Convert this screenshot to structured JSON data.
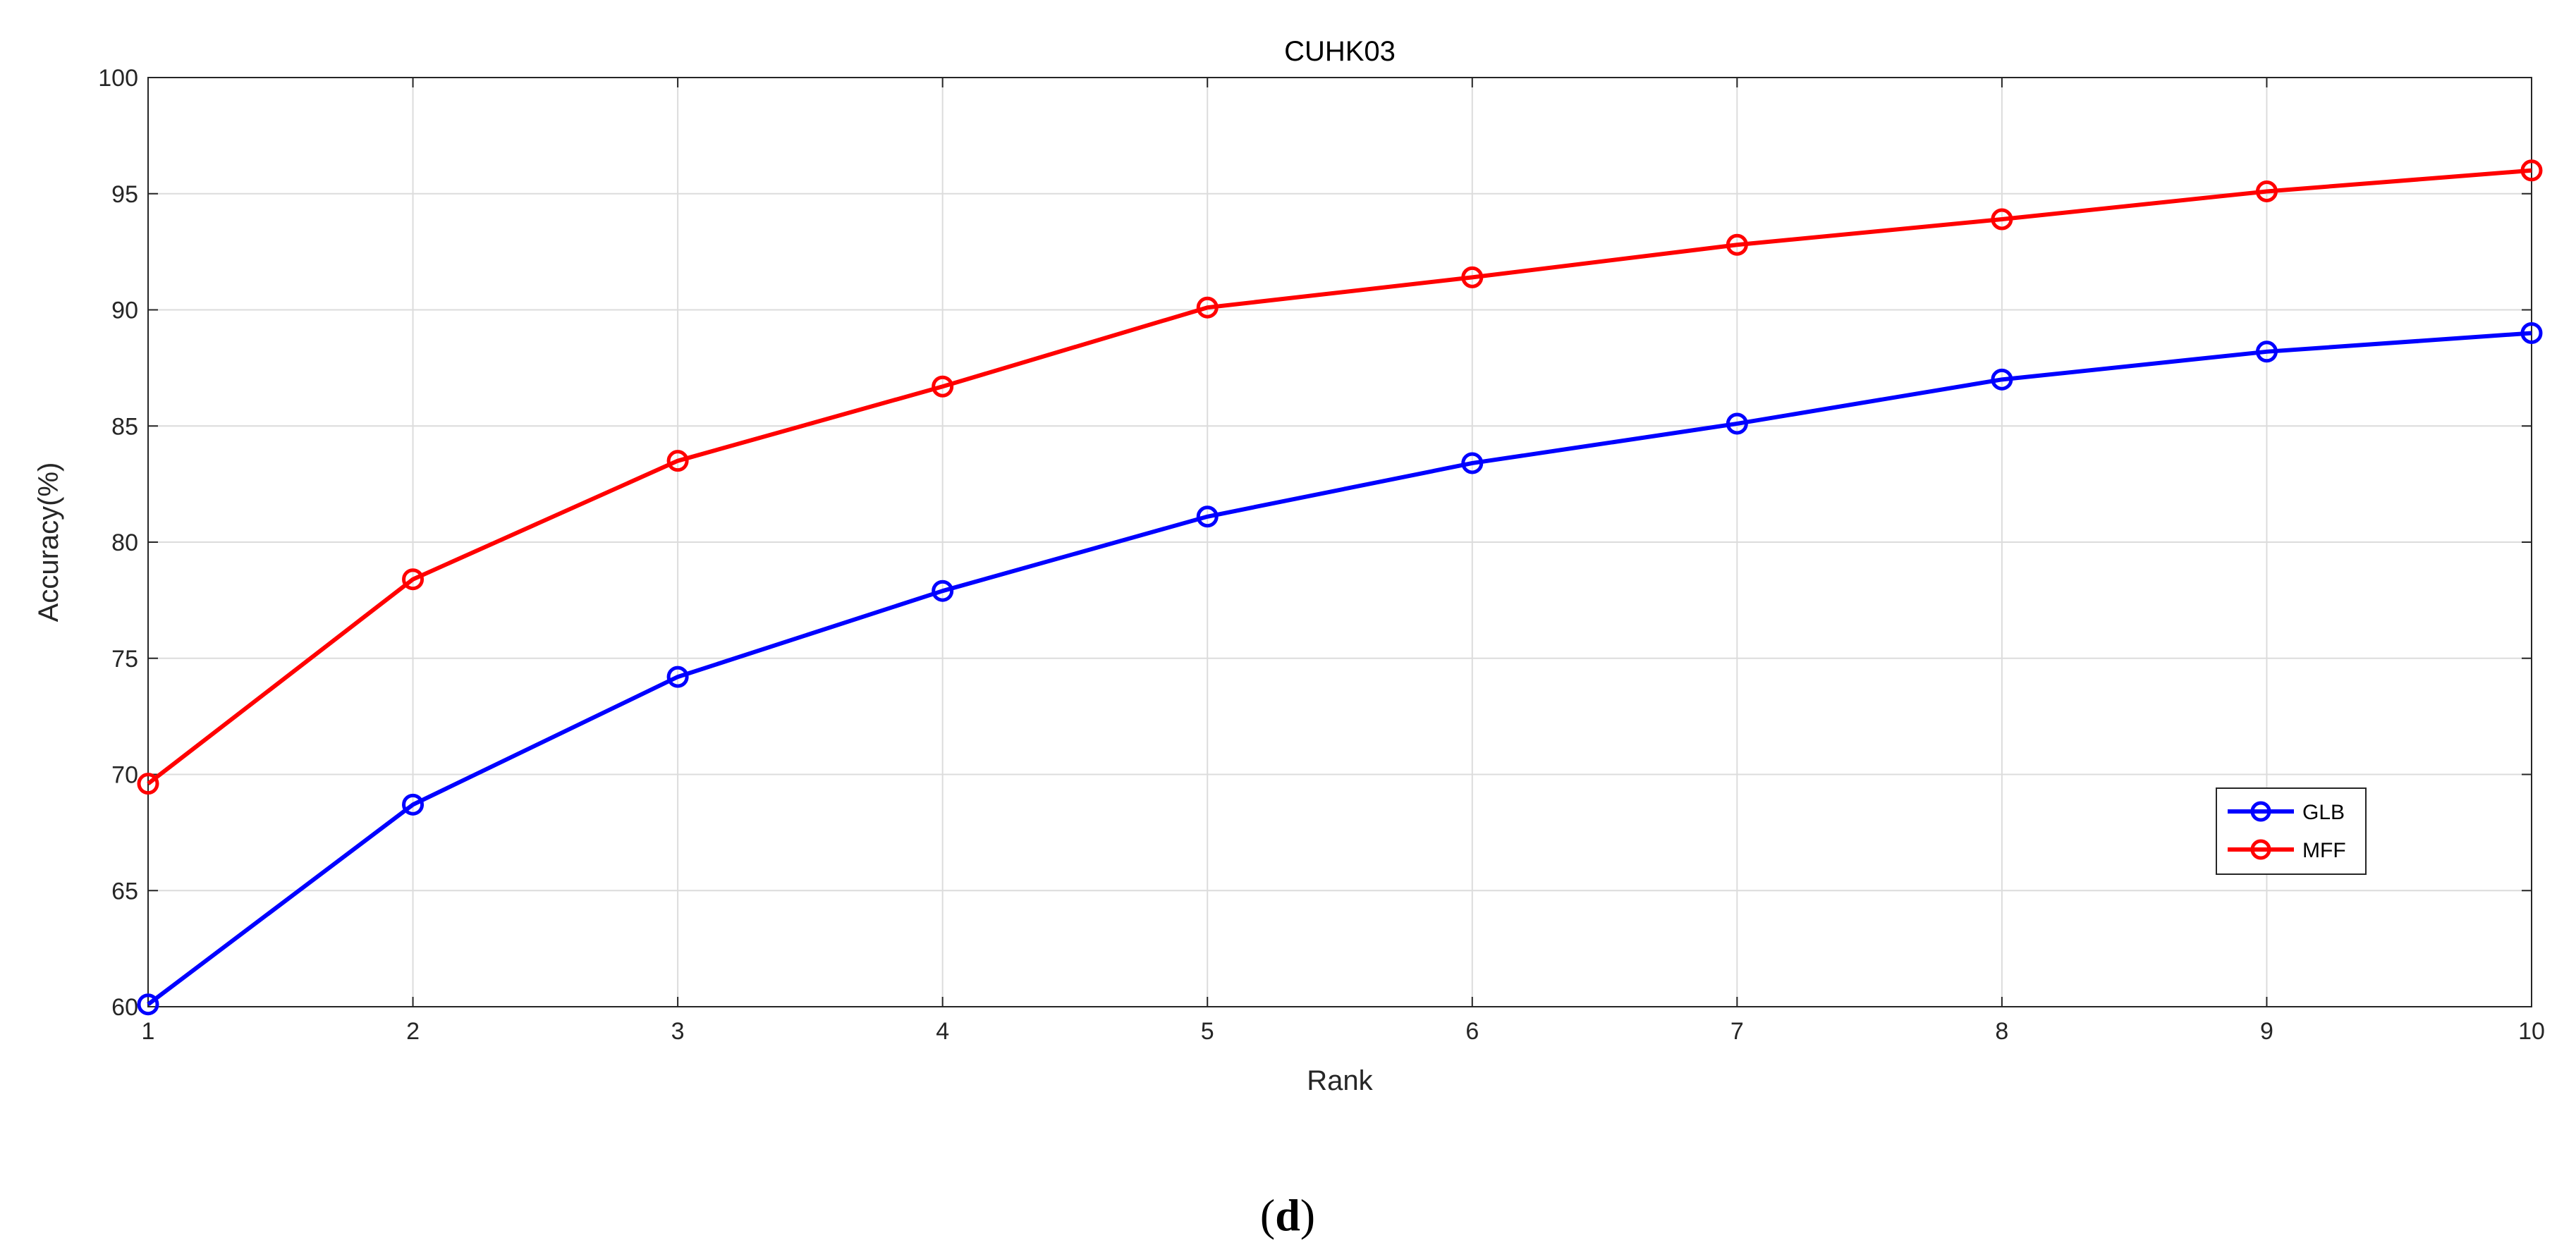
{
  "chart_data": {
    "type": "line",
    "title": "CUHK03",
    "xlabel": "Rank",
    "ylabel": "Accuracy(%)",
    "x": [
      1,
      2,
      3,
      4,
      5,
      6,
      7,
      8,
      9,
      10
    ],
    "xlim": [
      1,
      10
    ],
    "ylim": [
      60,
      100
    ],
    "xticks": [
      1,
      2,
      3,
      4,
      5,
      6,
      7,
      8,
      9,
      10
    ],
    "yticks": [
      60,
      65,
      70,
      75,
      80,
      85,
      90,
      95,
      100
    ],
    "grid": true,
    "legend_placement": "lower-right",
    "series": [
      {
        "name": "GLB",
        "color": "#0000ff",
        "marker": "circle",
        "values": [
          60.1,
          68.7,
          74.2,
          77.9,
          81.1,
          83.4,
          85.1,
          87.0,
          88.2,
          89.0
        ]
      },
      {
        "name": "MFF",
        "color": "#ff0000",
        "marker": "circle",
        "values": [
          69.6,
          78.4,
          83.5,
          86.7,
          90.1,
          91.4,
          92.8,
          93.9,
          95.1,
          96.0
        ]
      }
    ]
  },
  "caption": {
    "open": "(",
    "letter": "d",
    "close": ")"
  }
}
